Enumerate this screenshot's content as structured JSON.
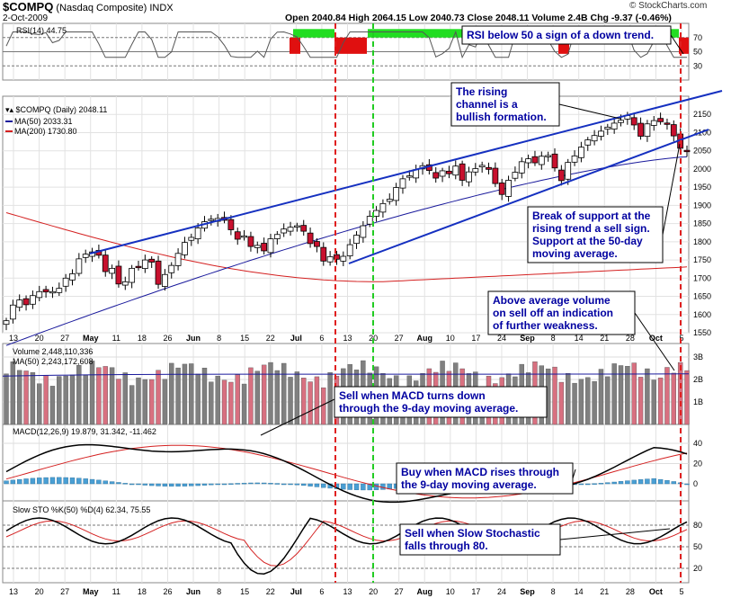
{
  "header": {
    "ticker": "$COMPQ",
    "name": "(Nasdaq Composite)",
    "exchange": "INDX",
    "date": "2-Oct-2009",
    "ohlc_text": "Open 2040.84  High 2064.15  Low 2040.73  Close 2048.11  Volume 2.4B  Chg -9.37 (-0.46%)",
    "copyright": "© StockCharts.com"
  },
  "colors": {
    "up": "#ffffff",
    "down": "#c8102e",
    "ma50": "#1a1a9c",
    "ma200": "#d42020",
    "trend": "#1530c0",
    "rsi_green": "#22dd22",
    "rsi_red": "#e01010",
    "vol_up": "#808080",
    "vol_down": "#d87080",
    "hist": "#4a9fd4",
    "redline": "#e02020",
    "greenline": "#22cc22",
    "note": "#0000a0"
  },
  "chart_data": {
    "type": "candlestick",
    "title": "$COMPQ (Nasdaq Composite) INDX",
    "price_ylim": [
      1550,
      2200
    ],
    "price_ticks": [
      1550,
      1600,
      1650,
      1700,
      1750,
      1800,
      1850,
      1900,
      1950,
      2000,
      2050,
      2100,
      2150
    ],
    "x_ticks": [
      "13",
      "20",
      "27",
      "May",
      "11",
      "18",
      "26",
      "Jun",
      "8",
      "15",
      "22",
      "Jul",
      "6",
      "13",
      "20",
      "27",
      "Aug",
      "10",
      "17",
      "24",
      "Sep",
      "8",
      "14",
      "21",
      "28",
      "Oct",
      "5"
    ],
    "close_path": [
      1583,
      1626,
      1640,
      1627,
      1652,
      1663,
      1662,
      1663,
      1672,
      1700,
      1712,
      1753,
      1766,
      1772,
      1763,
      1718,
      1727,
      1684,
      1690,
      1727,
      1732,
      1750,
      1744,
      1683,
      1710,
      1735,
      1768,
      1798,
      1812,
      1838,
      1855,
      1862,
      1864,
      1859,
      1833,
      1807,
      1816,
      1787,
      1790,
      1775,
      1808,
      1820,
      1835,
      1840,
      1844,
      1829,
      1795,
      1787,
      1747,
      1759,
      1752,
      1760,
      1792,
      1818,
      1844,
      1870,
      1886,
      1905,
      1917,
      1949,
      1973,
      1981,
      1998,
      2009,
      1996,
      1975,
      1995,
      1987,
      2008,
      1969,
      1992,
      2001,
      2010,
      1999,
      1960,
      1930,
      1969,
      1991,
      2020,
      2028,
      2017,
      2035,
      2037,
      2003,
      1968,
      2018,
      2036,
      2060,
      2080,
      2092,
      2104,
      2115,
      2126,
      2134,
      2147,
      2121,
      2090,
      2124,
      2133,
      2130,
      2123,
      2091,
      2057,
      2048
    ],
    "ma50_start": 1515,
    "ma50_end": 2033.31,
    "ma200_start": 1880,
    "ma200_min": 1690,
    "ma200_end": 1730.8,
    "rsi": {
      "label": "RSI(14) 44.75",
      "value": 44.75,
      "ticks": [
        30,
        50,
        70
      ],
      "overbought": 70,
      "oversold": 30
    },
    "volume": {
      "label": "Volume 2,448,110,336",
      "ma_label": "MA(50) 2,243,172,608",
      "ticks": [
        "1B",
        "2B",
        "3B"
      ]
    },
    "macd": {
      "label": "MACD(12,26,9) 19.879, 31.342, -11.462",
      "macd": 19.879,
      "signal": 31.342,
      "hist": -11.462,
      "ticks": [
        0,
        20,
        40
      ]
    },
    "sto": {
      "label": "Slow STO %K(50) %D(4) 62.34, 75.55",
      "k": 62.34,
      "d": 75.55,
      "ticks": [
        20,
        50,
        80
      ]
    },
    "legend": {
      "price": "$COMPQ (Daily) 2048.11",
      "ma50": "MA(50) 2033.31",
      "ma200": "MA(200) 1730.80"
    },
    "annotations": {
      "rsi": "RSI below 50 a sign of a down trend.",
      "channel": [
        "The rising",
        "channel is a",
        "bullish formation."
      ],
      "support": [
        "Break of support at the",
        "rising trend a sell sign.",
        "Support at the 50-day",
        "moving average."
      ],
      "volume": [
        "Above average volume",
        "on sell off an indication",
        "of further weakness."
      ],
      "macd_sell": [
        "Sell when MACD turns down",
        "through the 9-day moving average."
      ],
      "macd_buy": [
        "Buy when MACD rises through",
        "the 9-day moving average."
      ],
      "sto_sell": [
        "Sell when Slow Stochastic",
        "falls through 80."
      ]
    }
  }
}
